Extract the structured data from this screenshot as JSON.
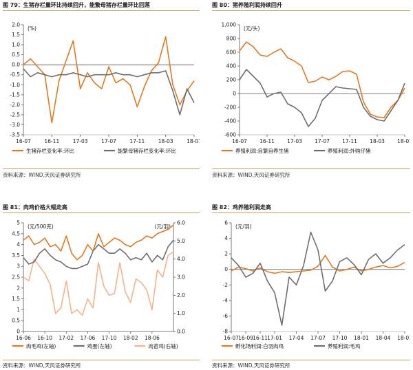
{
  "colors": {
    "orange": "#E07A1F",
    "grey": "#6E6E6E",
    "peach": "#F2B48C",
    "rule": "#C8A060"
  },
  "panels": [
    {
      "header": {
        "num": "图 79：",
        "title": "生猪存栏量环比持续回升，能繁母猪存栏量环比回落"
      },
      "source": "资料来源：WIND,天风证券研究所",
      "chart_data": {
        "type": "line",
        "unit_left": "(%)",
        "ylim": [
          -3.5,
          2.0
        ],
        "yticks": [
          "2.0",
          "1.5",
          "1.0",
          "0.5",
          "0.0",
          "-0.5",
          "-1.0",
          "-1.5",
          "-2.0",
          "-2.5",
          "-3.0",
          "-3.5"
        ],
        "xlim": [
          0,
          24
        ],
        "xticks": [
          {
            "pos": 0,
            "label": "16-07"
          },
          {
            "pos": 4,
            "label": "16-11"
          },
          {
            "pos": 8,
            "label": "17-03"
          },
          {
            "pos": 12,
            "label": "17-07"
          },
          {
            "pos": 16,
            "label": "17-11"
          },
          {
            "pos": 20,
            "label": "18-03"
          },
          {
            "pos": 24,
            "label": "18-07"
          }
        ],
        "series": [
          {
            "name": "生猪存栏变化率:环比",
            "color": "#E07A1F",
            "axis": "left",
            "x": [
              0,
              1,
              2,
              3,
              4,
              5,
              6,
              7,
              8,
              9,
              10,
              11,
              12,
              13,
              14,
              15,
              16,
              17,
              18,
              19,
              20,
              21,
              22,
              23,
              24
            ],
            "y": [
              0.0,
              0.3,
              -0.1,
              -0.5,
              -2.9,
              -0.8,
              0.2,
              1.2,
              -1.2,
              -0.4,
              -0.9,
              -1.2,
              -0.1,
              -0.9,
              -0.7,
              -1.0,
              -2.1,
              -1.1,
              -0.3,
              0.1,
              1.4,
              -1.0,
              -2.0,
              -1.3,
              -0.8
            ]
          },
          {
            "name": "能繁母猪存栏变化率:环比",
            "color": "#6E6E6E",
            "axis": "left",
            "x": [
              0,
              1,
              2,
              3,
              4,
              5,
              6,
              7,
              8,
              9,
              10,
              11,
              12,
              13,
              14,
              15,
              16,
              17,
              18,
              19,
              20,
              21,
              22,
              23,
              24
            ],
            "y": [
              -0.2,
              -0.6,
              -0.4,
              -0.5,
              -0.6,
              -0.5,
              -0.5,
              -0.4,
              -0.5,
              -0.6,
              -0.5,
              -0.5,
              -0.5,
              -0.4,
              -0.5,
              -0.5,
              -0.6,
              -0.5,
              -0.4,
              -0.4,
              -0.3,
              -1.3,
              -2.5,
              -1.2,
              -1.9
            ]
          }
        ]
      }
    },
    {
      "header": {
        "num": "图 80：",
        "title": "猪养殖利润持续回升"
      },
      "source": "资料来源：WIND,天风证券研究所",
      "chart_data": {
        "type": "line",
        "unit_left": "(元/头)",
        "ylim": [
          -600,
          1000
        ],
        "yticks": [
          "1,000",
          "800",
          "600",
          "400",
          "200",
          "0",
          "-200",
          "-400",
          "-600"
        ],
        "xlim": [
          0,
          24
        ],
        "xticks": [
          {
            "pos": 0,
            "label": "16-07"
          },
          {
            "pos": 4,
            "label": "16-11"
          },
          {
            "pos": 8,
            "label": "17-03"
          },
          {
            "pos": 12,
            "label": "17-07"
          },
          {
            "pos": 16,
            "label": "17-11"
          },
          {
            "pos": 20,
            "label": "18-03"
          },
          {
            "pos": 24,
            "label": "18-07"
          }
        ],
        "series": [
          {
            "name": "养殖利润:自繁自养生猪",
            "color": "#E07A1F",
            "axis": "left",
            "x": [
              0,
              1,
              2,
              3,
              4,
              5,
              6,
              7,
              8,
              9,
              10,
              11,
              12,
              13,
              14,
              15,
              16,
              17,
              18,
              19,
              20,
              21,
              22,
              23,
              24
            ],
            "y": [
              620,
              750,
              680,
              560,
              540,
              600,
              650,
              520,
              470,
              400,
              160,
              180,
              240,
              200,
              250,
              320,
              330,
              280,
              -120,
              -300,
              -340,
              -350,
              -200,
              -100,
              80
            ]
          },
          {
            "name": "养殖利润:外购仔猪",
            "color": "#6E6E6E",
            "axis": "left",
            "x": [
              0,
              1,
              2,
              3,
              4,
              5,
              6,
              7,
              8,
              9,
              10,
              11,
              12,
              13,
              14,
              15,
              16,
              17,
              18,
              19,
              20,
              21,
              22,
              23,
              24
            ],
            "y": [
              200,
              350,
              250,
              150,
              -50,
              0,
              20,
              -150,
              -200,
              -280,
              -480,
              -360,
              -100,
              0,
              100,
              80,
              70,
              60,
              -200,
              -330,
              -380,
              -400,
              -250,
              -100,
              150
            ]
          }
        ]
      }
    },
    {
      "header": {
        "num": "图 81：",
        "title": "肉鸡价格大幅走高"
      },
      "source": "资料来源：WIND,天风证券研究所",
      "chart_data": {
        "type": "line",
        "unit_left": "(元/500克)",
        "unit_right": "(元/羽)",
        "ylim": [
          0,
          5
        ],
        "yticks": [
          "5",
          "4.5",
          "4",
          "3.5",
          "3",
          "2.5",
          "2",
          "1.5",
          "1",
          "0.5",
          "0"
        ],
        "y2lim": [
          0,
          6
        ],
        "y2ticks": [
          "6.0",
          "5.0",
          "4.0",
          "3.0",
          "2.0",
          "1.0",
          "0.0"
        ],
        "xlim": [
          0,
          28
        ],
        "xticks": [
          {
            "pos": 0,
            "label": "16-06"
          },
          {
            "pos": 4,
            "label": "16-10"
          },
          {
            "pos": 8,
            "label": "17-02"
          },
          {
            "pos": 12,
            "label": "17-06"
          },
          {
            "pos": 16,
            "label": "17-10"
          },
          {
            "pos": 20,
            "label": "18-02"
          },
          {
            "pos": 24,
            "label": "18-06"
          }
        ],
        "series": [
          {
            "name": "肉毛鸡(左轴)",
            "color": "#E07A1F",
            "axis": "left",
            "x": [
              0,
              1,
              2,
              3,
              4,
              5,
              6,
              7,
              8,
              9,
              10,
              11,
              12,
              13,
              14,
              15,
              16,
              17,
              18,
              19,
              20,
              21,
              22,
              23,
              24,
              25,
              26,
              27,
              28
            ],
            "y": [
              4.2,
              4.4,
              4.0,
              4.1,
              4.3,
              3.9,
              4.0,
              3.7,
              4.4,
              3.6,
              3.3,
              3.5,
              4.0,
              3.7,
              4.5,
              3.9,
              4.1,
              4.3,
              4.2,
              4.0,
              3.9,
              4.1,
              4.2,
              4.4,
              4.3,
              4.5,
              4.6,
              4.7,
              4.9
            ]
          },
          {
            "name": "鸡蛋(左轴)",
            "color": "#6E6E6E",
            "axis": "left",
            "x": [
              0,
              1,
              2,
              3,
              4,
              5,
              6,
              7,
              8,
              9,
              10,
              11,
              12,
              13,
              14,
              15,
              16,
              17,
              18,
              19,
              20,
              21,
              22,
              23,
              24,
              25,
              26,
              27,
              28
            ],
            "y": [
              3.4,
              3.1,
              3.2,
              3.6,
              3.8,
              3.5,
              3.3,
              3.2,
              3.0,
              2.9,
              2.9,
              3.0,
              3.1,
              3.7,
              4.0,
              3.8,
              3.6,
              3.6,
              3.8,
              3.6,
              3.3,
              3.4,
              3.3,
              3.6,
              3.2,
              3.5,
              3.3,
              3.9,
              4.2
            ]
          },
          {
            "name": "肉苗鸡(右轴)",
            "color": "#F2B48C",
            "axis": "right",
            "x": [
              0,
              1,
              2,
              3,
              4,
              5,
              6,
              7,
              8,
              9,
              10,
              11,
              12,
              13,
              14,
              15,
              16,
              17,
              18,
              19,
              20,
              21,
              22,
              23,
              24,
              25,
              26,
              27,
              28
            ],
            "y": [
              3.0,
              2.8,
              4.0,
              3.6,
              3.2,
              2.6,
              1.0,
              1.3,
              2.8,
              1.0,
              1.2,
              0.9,
              1.8,
              1.3,
              3.8,
              2.5,
              2.0,
              2.1,
              3.8,
              2.2,
              1.6,
              2.9,
              2.7,
              2.3,
              1.2,
              3.4,
              3.0,
              4.2,
              4.4
            ]
          }
        ]
      }
    },
    {
      "header": {
        "num": "图 82：",
        "title": "鸡养殖利润走高"
      },
      "source": "资料来源：WIND,天风证券研究所",
      "chart_data": {
        "type": "line",
        "unit_left": "(元/羽)",
        "ylim": [
          -8,
          6
        ],
        "yticks": [
          "6",
          "4",
          "2",
          "0",
          "-2",
          "-4",
          "-6",
          "-8"
        ],
        "xlim": [
          0,
          24
        ],
        "xticks": [
          {
            "pos": 0,
            "label": "16-07"
          },
          {
            "pos": 2,
            "label": "16-09"
          },
          {
            "pos": 4,
            "label": "16-11"
          },
          {
            "pos": 6,
            "label": "17-01"
          },
          {
            "pos": 9,
            "label": "17-04"
          },
          {
            "pos": 12,
            "label": "17-07"
          },
          {
            "pos": 15,
            "label": "17-10"
          },
          {
            "pos": 18,
            "label": "18-01"
          },
          {
            "pos": 21,
            "label": "18-04"
          },
          {
            "pos": 24,
            "label": "18-07"
          }
        ],
        "series": [
          {
            "name": "孵化场利润:白羽肉鸡",
            "color": "#E07A1F",
            "axis": "left",
            "x": [
              0,
              1,
              2,
              3,
              4,
              5,
              6,
              7,
              8,
              9,
              10,
              11,
              12,
              13,
              14,
              15,
              16,
              17,
              18,
              19,
              20,
              21,
              22,
              23,
              24
            ],
            "y": [
              -0.2,
              0.3,
              0.1,
              -0.2,
              0.2,
              -0.3,
              -0.5,
              -0.3,
              -0.4,
              -0.3,
              -0.2,
              -0.1,
              0.4,
              1.8,
              0.3,
              -0.2,
              0.0,
              0.3,
              -0.2,
              0.0,
              0.3,
              0.5,
              0.2,
              0.4,
              0.9
            ]
          },
          {
            "name": "养殖利润:毛鸡",
            "color": "#6E6E6E",
            "axis": "left",
            "x": [
              0,
              1,
              2,
              3,
              4,
              5,
              6,
              7,
              8,
              9,
              10,
              11,
              12,
              13,
              14,
              15,
              16,
              17,
              18,
              19,
              20,
              21,
              22,
              23,
              24
            ],
            "y": [
              1.5,
              0.5,
              -1.0,
              -0.5,
              0.8,
              -1.5,
              -3.0,
              -7.2,
              -1.0,
              -2.0,
              0.5,
              4.8,
              2.5,
              -2.8,
              -1.5,
              1.0,
              1.5,
              0.6,
              -0.7,
              1.3,
              2.0,
              0.8,
              1.5,
              2.5,
              3.2
            ]
          }
        ]
      }
    }
  ]
}
